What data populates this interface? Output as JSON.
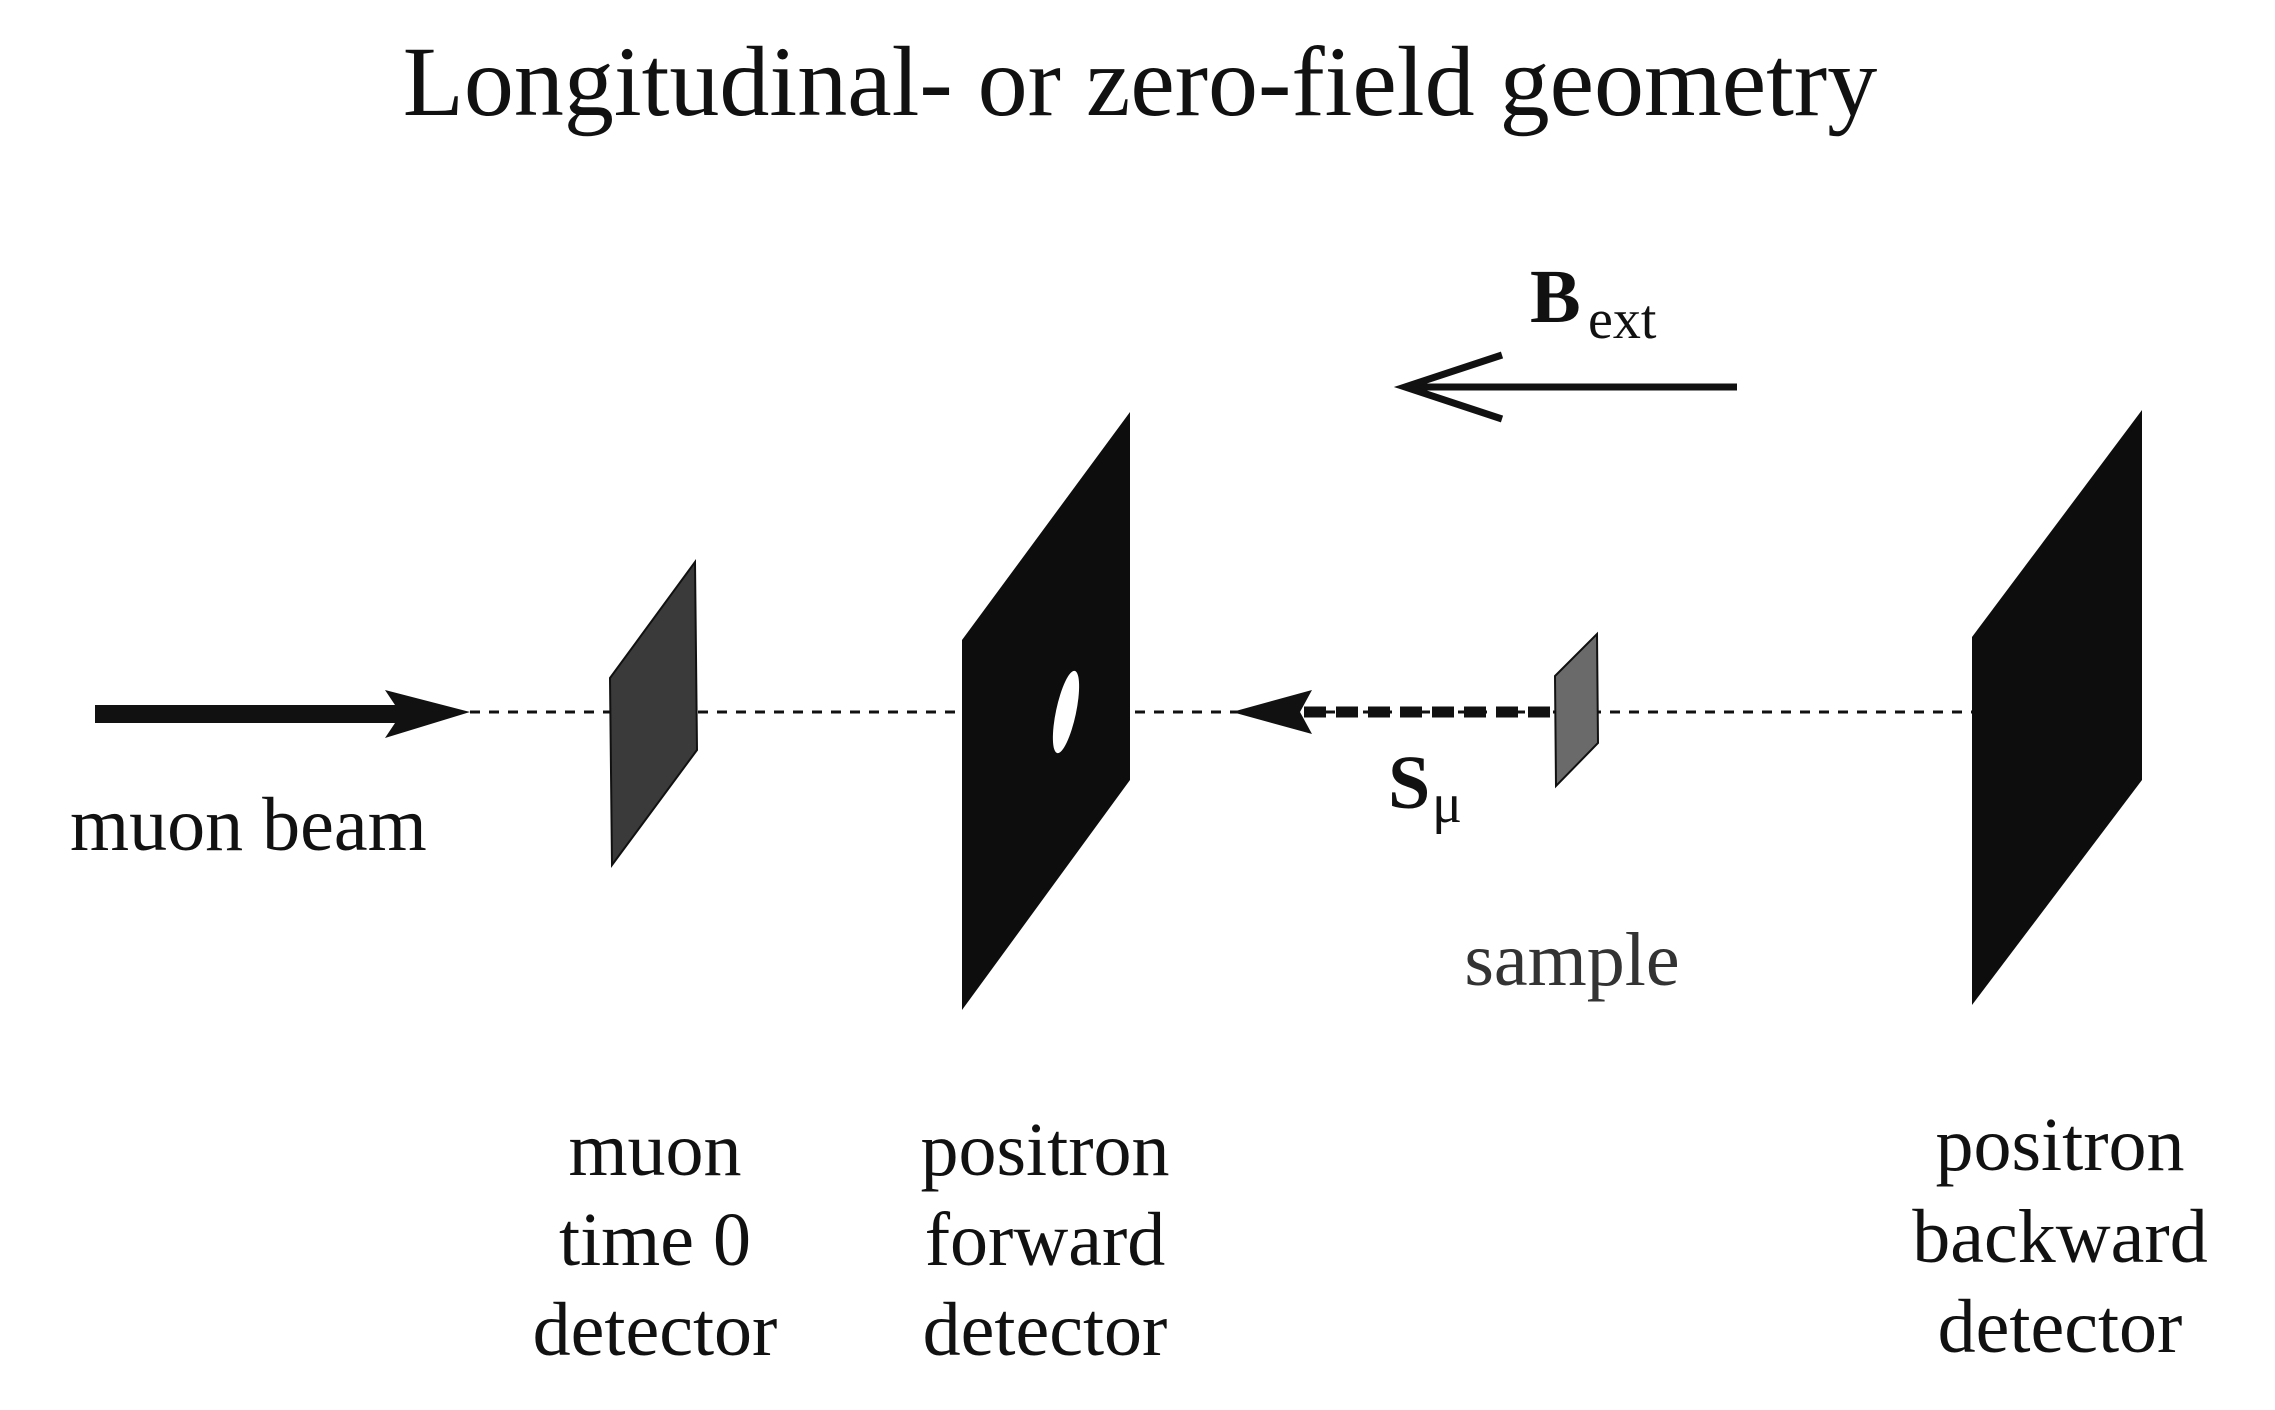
{
  "title": "Longitudinal- or zero-field geometry",
  "beam_label": "muon beam",
  "field": {
    "symbol": "B",
    "subscript": "ext"
  },
  "spin": {
    "symbol": "S",
    "subscript": "μ"
  },
  "sample_label": "sample",
  "detectors": {
    "muon_t0": [
      "muon",
      "time 0",
      "detector"
    ],
    "forward": [
      "positron",
      "forward",
      "detector"
    ],
    "backward": [
      "positron",
      "backward",
      "detector"
    ]
  },
  "colors": {
    "ink": "#111111",
    "detector_dark": "#0d0d0d",
    "detector_grey": "#3a3a3a",
    "sample_grey": "#6a6a6a"
  }
}
